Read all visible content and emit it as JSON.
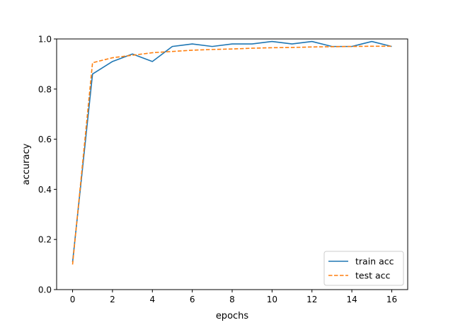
{
  "chart_data": {
    "type": "line",
    "xlabel": "epochs",
    "ylabel": "accuracy",
    "xlim": [
      -0.8,
      16.8
    ],
    "ylim": [
      0.0,
      1.0
    ],
    "xticks": [
      0,
      2,
      4,
      6,
      8,
      10,
      12,
      14,
      16
    ],
    "yticks": [
      0.0,
      0.2,
      0.4,
      0.6,
      0.8,
      1.0
    ],
    "xtick_labels": [
      "0",
      "2",
      "4",
      "6",
      "8",
      "10",
      "12",
      "14",
      "16"
    ],
    "ytick_labels": [
      "0.0",
      "0.2",
      "0.4",
      "0.6",
      "0.8",
      "1.0"
    ],
    "grid": false,
    "legend_position": "lower-right",
    "x": [
      0,
      1,
      2,
      3,
      4,
      5,
      6,
      7,
      8,
      9,
      10,
      11,
      12,
      13,
      14,
      15,
      16
    ],
    "series": [
      {
        "name": "train acc",
        "style": "solid",
        "color": "#1f77b4",
        "values": [
          0.11,
          0.86,
          0.91,
          0.94,
          0.91,
          0.97,
          0.98,
          0.97,
          0.98,
          0.98,
          0.99,
          0.98,
          0.99,
          0.97,
          0.97,
          0.99,
          0.97
        ]
      },
      {
        "name": "test acc",
        "style": "dashed",
        "color": "#ff7f0e",
        "values": [
          0.1,
          0.905,
          0.925,
          0.935,
          0.945,
          0.95,
          0.955,
          0.958,
          0.96,
          0.963,
          0.965,
          0.966,
          0.968,
          0.969,
          0.97,
          0.971,
          0.971
        ]
      }
    ]
  }
}
